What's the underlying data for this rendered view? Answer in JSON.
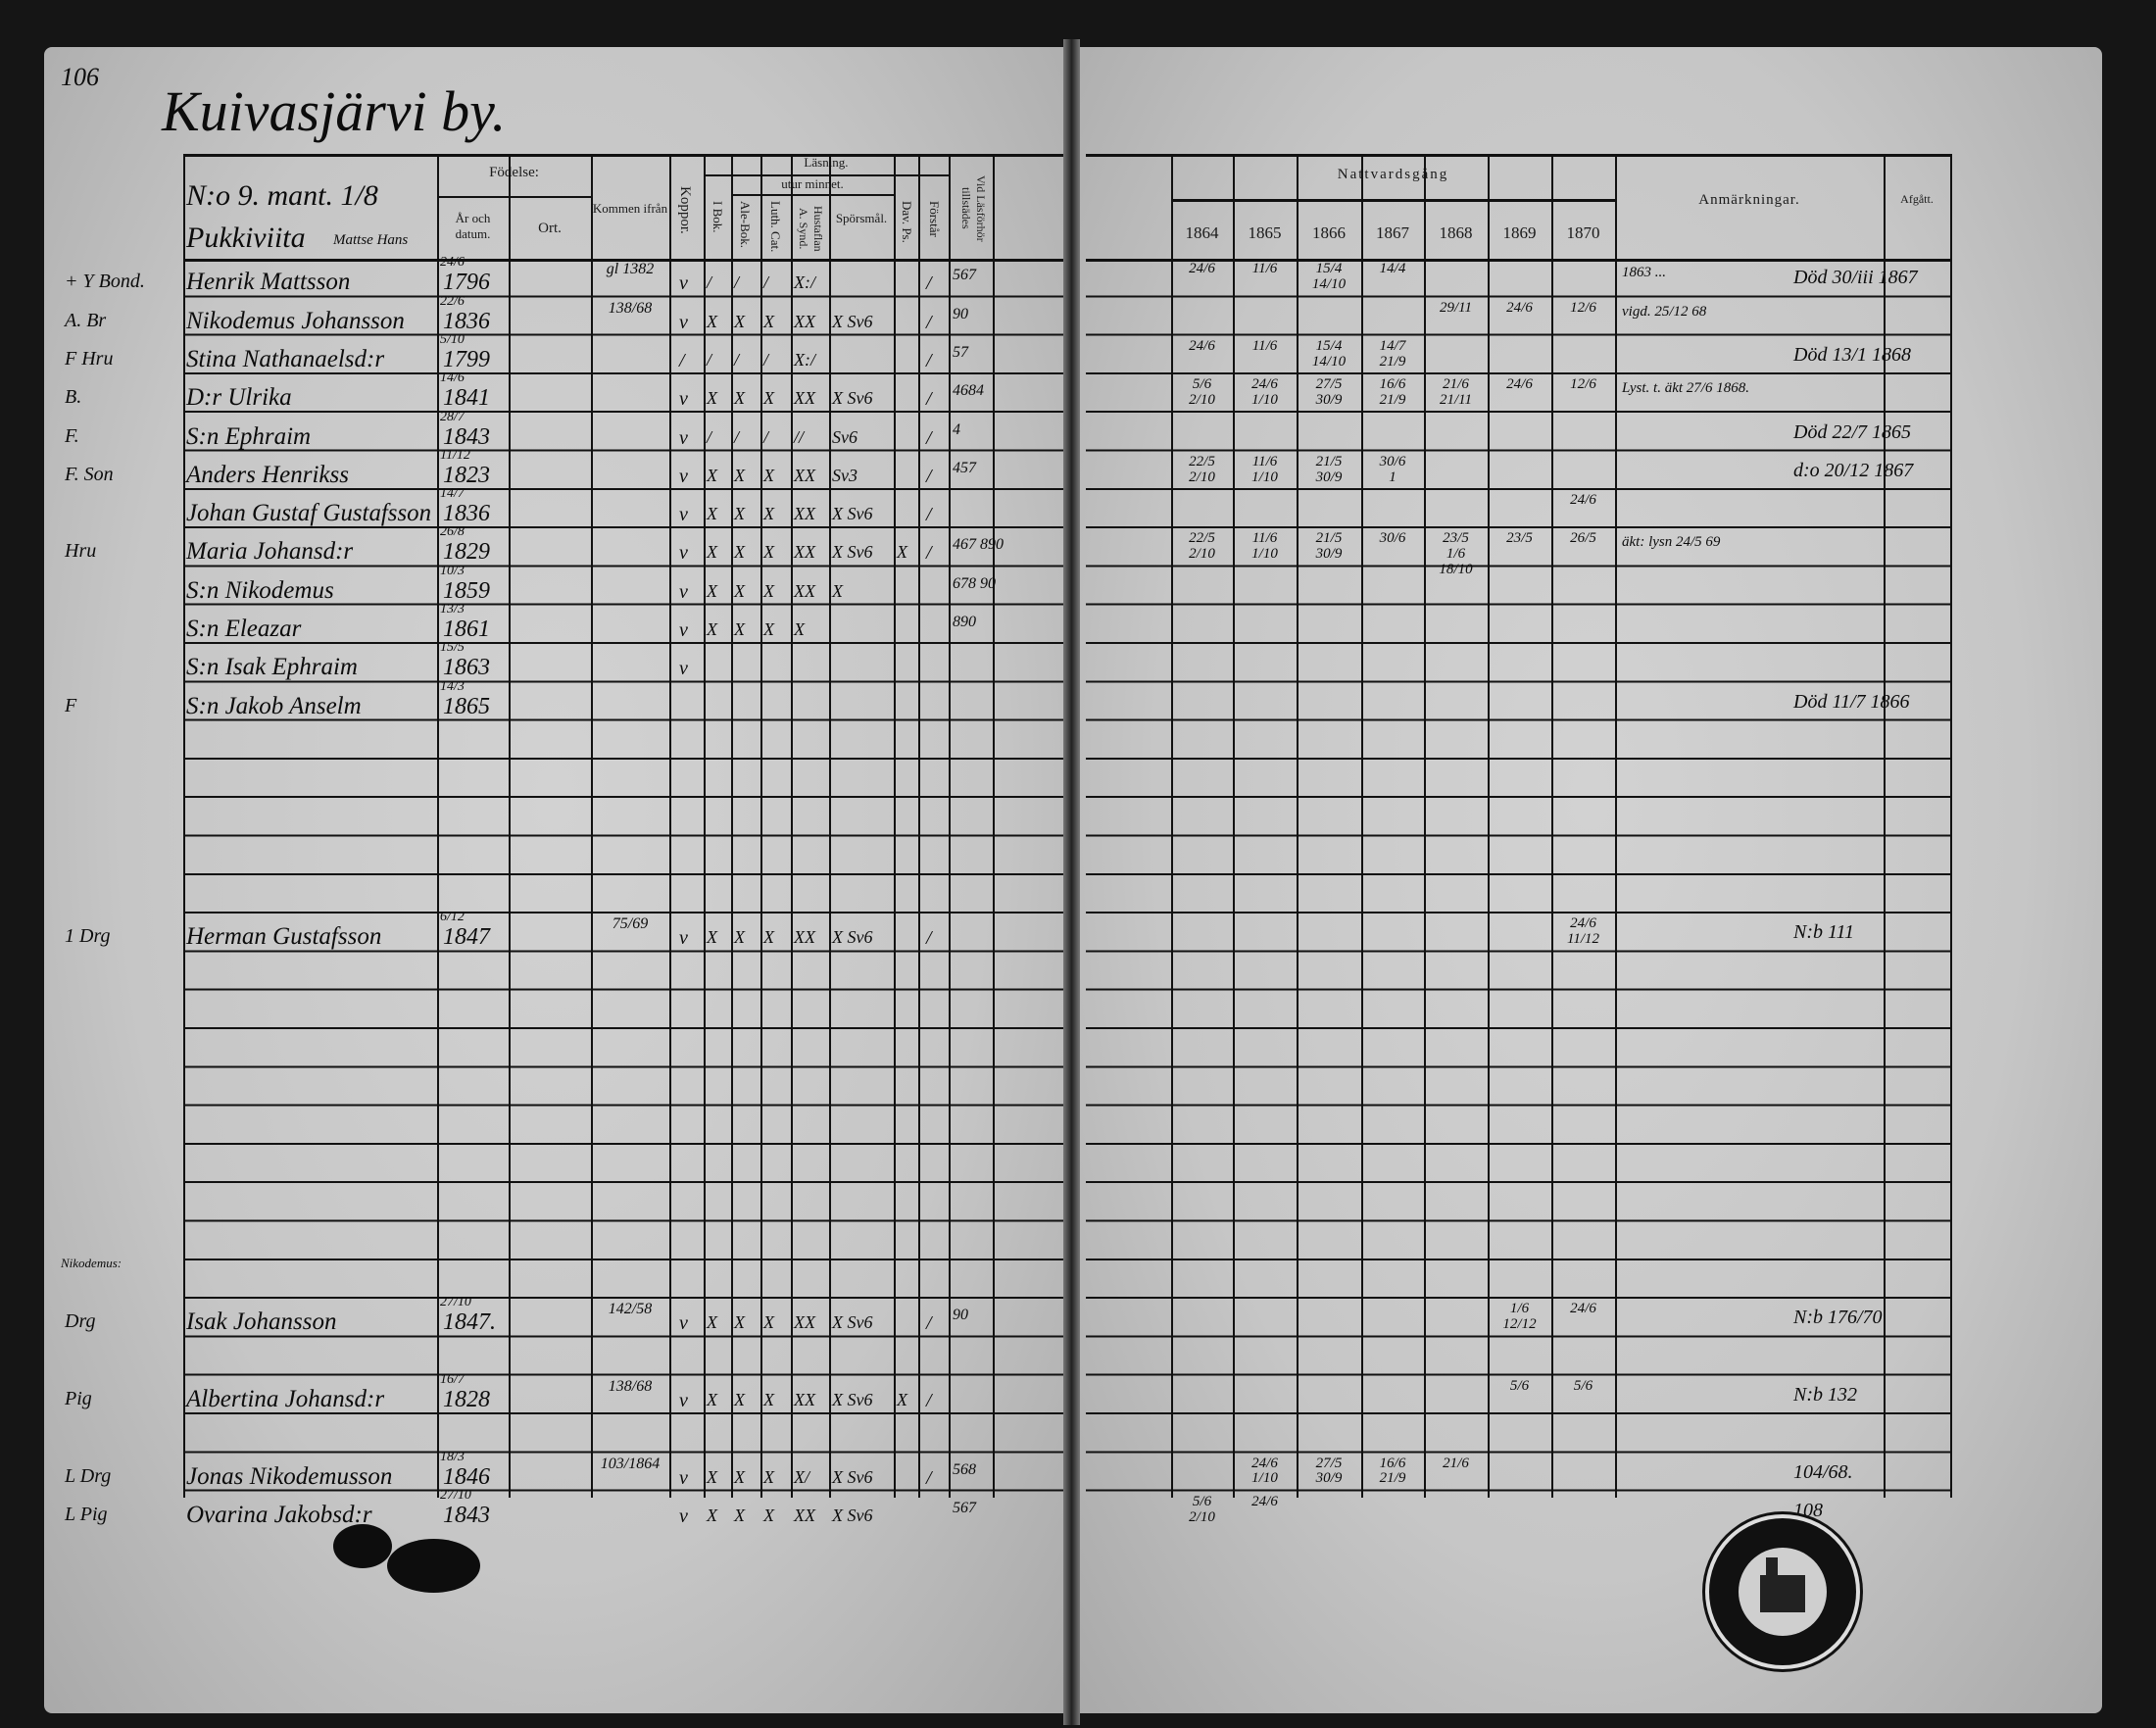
{
  "page_number": "106",
  "village_title": "Kuivasjärvi by.",
  "homestead": {
    "number": "N:o 9. mant. 1/8",
    "name": "Pukkiviita",
    "name_note": "Mattse Hans"
  },
  "left_headers": {
    "birth": "Födelse:",
    "year_date": "År och datum.",
    "place": "Ort.",
    "came_from": "Kommen ifrån",
    "smallpox": "Koppor.",
    "reading": "Läsning.",
    "by_heart": "utur minnet.",
    "in_book": "I Bok.",
    "abc_book": "Ale-Bok.",
    "luth_cat": "Luth. Cat.",
    "household": "Hustaflan A. Synd.",
    "questions": "Spörsmål.",
    "dav_ps": "Dav. Ps.",
    "understands": "Förstår",
    "exam_present": "Vid Läsförhör tillstädes"
  },
  "right_headers": {
    "communion": "Nattvardsgång",
    "years": [
      "1864",
      "1865",
      "1866",
      "1867",
      "1868",
      "1869",
      "1870"
    ],
    "remarks": "Anmärkningar.",
    "departed": "Afgått."
  },
  "margin_note": "Nikodemus:",
  "rows": [
    {
      "prefix": "+ Y Bond.",
      "name": "Henrik Mattsson",
      "birth_day": "24/6",
      "birth_year": "1796",
      "came_from": "gl 1382",
      "smallpox": "v",
      "marks": [
        "/",
        "/",
        "/",
        "X:/",
        "",
        ""
      ],
      "understands": "/",
      "exam": "567",
      "communion": [
        "24/6",
        "11/6",
        "15/4 14/10",
        "14/4",
        "",
        "",
        ""
      ],
      "remark": "1863 ...",
      "departed": "Död 30/iii 1867"
    },
    {
      "prefix": "A. Br",
      "name": "Nikodemus Johansson",
      "birth_day": "22/6",
      "birth_year": "1836",
      "came_from": "138/68",
      "smallpox": "v",
      "marks": [
        "X",
        "X",
        "X",
        "XX",
        "X Sv6",
        ""
      ],
      "understands": "/",
      "exam": "90",
      "communion": [
        "",
        "",
        "",
        "",
        "29/11",
        "24/6",
        "12/6"
      ],
      "remark": "vigd. 25/12 68",
      "departed": ""
    },
    {
      "prefix": "F Hru",
      "name": "Stina Nathanaelsd:r",
      "birth_day": "5/10",
      "birth_year": "1799",
      "came_from": "",
      "smallpox": "/",
      "marks": [
        "/",
        "/",
        "/",
        "X:/",
        "",
        ""
      ],
      "understands": "/",
      "exam": "57",
      "communion": [
        "24/6",
        "11/6",
        "15/4 14/10",
        "14/7 21/9",
        "",
        "",
        ""
      ],
      "remark": "",
      "departed": "Död 13/1 1868"
    },
    {
      "prefix": "B.",
      "name": "D:r Ulrika",
      "birth_day": "14/6",
      "birth_year": "1841",
      "came_from": "",
      "smallpox": "v",
      "marks": [
        "X",
        "X",
        "X",
        "XX",
        "X Sv6",
        ""
      ],
      "understands": "/",
      "exam": "4684",
      "communion": [
        "5/6 2/10",
        "24/6 1/10",
        "27/5 30/9",
        "16/6 21/9",
        "21/6 21/11",
        "24/6",
        "12/6"
      ],
      "remark": "Lyst. t. äkt 27/6 1868.",
      "departed": ""
    },
    {
      "prefix": "F.",
      "name": "S:n Ephraim",
      "birth_day": "28/7",
      "birth_year": "1843",
      "came_from": "",
      "smallpox": "v",
      "marks": [
        "/",
        "/",
        "/",
        "//",
        "Sv6",
        ""
      ],
      "understands": "/",
      "exam": "4",
      "communion": [
        "",
        "",
        "",
        "",
        "",
        "",
        ""
      ],
      "remark": "",
      "departed": "Död 22/7 1865"
    },
    {
      "prefix": "F. Son",
      "name": "Anders Henrikss",
      "birth_day": "11/12",
      "birth_year": "1823",
      "came_from": "",
      "smallpox": "v",
      "marks": [
        "X",
        "X",
        "X",
        "XX",
        "Sv3",
        ""
      ],
      "understands": "/",
      "exam": "457",
      "communion": [
        "22/5 2/10",
        "11/6 1/10",
        "21/5 30/9",
        "30/6 1",
        "",
        "",
        ""
      ],
      "remark": "",
      "departed": "d:o 20/12 1867"
    },
    {
      "prefix": "",
      "name": "Johan Gustaf Gustafsson",
      "birth_day": "14/7",
      "birth_year": "1836",
      "came_from": "",
      "smallpox": "v",
      "marks": [
        "X",
        "X",
        "X",
        "XX",
        "X Sv6",
        ""
      ],
      "understands": "/",
      "exam": "",
      "communion": [
        "",
        "",
        "",
        "",
        "",
        "",
        "24/6"
      ],
      "remark": "",
      "departed": ""
    },
    {
      "prefix": "Hru",
      "name": "Maria Johansd:r",
      "birth_day": "26/8",
      "birth_year": "1829",
      "came_from": "",
      "smallpox": "v",
      "marks": [
        "X",
        "X",
        "X",
        "XX",
        "X Sv6",
        "X"
      ],
      "understands": "/",
      "exam": "467 890",
      "communion": [
        "22/5 2/10",
        "11/6 1/10",
        "21/5 30/9",
        "30/6",
        "23/5 1/6 18/10",
        "23/5",
        "26/5"
      ],
      "remark": "äkt: lysn 24/5 69",
      "departed": ""
    },
    {
      "prefix": "",
      "name": "S:n Nikodemus",
      "birth_day": "10/3",
      "birth_year": "1859",
      "came_from": "",
      "smallpox": "v",
      "marks": [
        "X",
        "X",
        "X",
        "XX",
        "X",
        ""
      ],
      "understands": "",
      "exam": "678 90",
      "communion": [
        "",
        "",
        "",
        "",
        "",
        "",
        ""
      ],
      "remark": "",
      "departed": ""
    },
    {
      "prefix": "",
      "name": "S:n Eleazar",
      "birth_day": "13/3",
      "birth_year": "1861",
      "came_from": "",
      "smallpox": "v",
      "marks": [
        "X",
        "X",
        "X",
        "X",
        "",
        ""
      ],
      "understands": "",
      "exam": "890",
      "communion": [
        "",
        "",
        "",
        "",
        "",
        "",
        ""
      ],
      "remark": "",
      "departed": ""
    },
    {
      "prefix": "",
      "name": "S:n Isak Ephraim",
      "birth_day": "15/5",
      "birth_year": "1863",
      "came_from": "",
      "smallpox": "v",
      "marks": [
        "",
        "",
        "",
        "",
        "",
        ""
      ],
      "understands": "",
      "exam": "",
      "communion": [
        "",
        "",
        "",
        "",
        "",
        "",
        ""
      ],
      "remark": "",
      "departed": ""
    },
    {
      "prefix": "F",
      "name": "S:n Jakob Anselm",
      "birth_day": "14/3",
      "birth_year": "1865",
      "came_from": "",
      "smallpox": "",
      "marks": [
        "",
        "",
        "",
        "",
        "",
        ""
      ],
      "understands": "",
      "exam": "",
      "communion": [
        "",
        "",
        "",
        "",
        "",
        "",
        ""
      ],
      "remark": "",
      "departed": "Död 11/7 1866"
    },
    {
      "prefix": "1 Drg",
      "name": "Herman Gustafsson",
      "birth_day": "6/12",
      "birth_year": "1847",
      "came_from": "75/69",
      "smallpox": "v",
      "marks": [
        "X",
        "X",
        "X",
        "XX",
        "X Sv6",
        ""
      ],
      "understands": "/",
      "exam": "",
      "communion": [
        "",
        "",
        "",
        "",
        "",
        "",
        "24/6 11/12"
      ],
      "remark": "",
      "departed": "N:b 111"
    },
    {
      "prefix": "Drg",
      "name": "Isak Johansson",
      "birth_day": "27/10",
      "birth_year": "1847.",
      "came_from": "142/58",
      "smallpox": "v",
      "marks": [
        "X",
        "X",
        "X",
        "XX",
        "X Sv6",
        ""
      ],
      "understands": "/",
      "exam": "90",
      "communion": [
        "",
        "",
        "",
        "",
        "",
        "1/6 12/12",
        "24/6"
      ],
      "remark": "",
      "departed": "N:b 176/70"
    },
    {
      "prefix": "Pig",
      "name": "Albertina Johansd:r",
      "birth_day": "16/7",
      "birth_year": "1828",
      "came_from": "138/68",
      "smallpox": "v",
      "marks": [
        "X",
        "X",
        "X",
        "XX",
        "X Sv6",
        "X"
      ],
      "understands": "/",
      "exam": "",
      "communion": [
        "",
        "",
        "",
        "",
        "",
        "5/6",
        "5/6"
      ],
      "remark": "",
      "departed": "N:b 132"
    },
    {
      "prefix": "L Drg",
      "name": "Jonas Nikodemusson",
      "birth_day": "18/3",
      "birth_year": "1846",
      "came_from": "103/1864",
      "smallpox": "v",
      "marks": [
        "X",
        "X",
        "X",
        "X/",
        "X Sv6",
        ""
      ],
      "understands": "/",
      "exam": "568",
      "communion": [
        "",
        "24/6 1/10",
        "27/5 30/9",
        "16/6 21/9",
        "21/6",
        "",
        ""
      ],
      "remark": "",
      "departed": "104/68."
    },
    {
      "prefix": "L Pig",
      "name": "Ovarina Jakobsd:r",
      "birth_day": "27/10",
      "birth_year": "1843",
      "came_from": "",
      "smallpox": "v",
      "marks": [
        "X",
        "X",
        "X",
        "XX",
        "X Sv6",
        ""
      ],
      "understands": "",
      "exam": "567",
      "communion": [
        "5/6 2/10",
        "24/6",
        "",
        "",
        "",
        "",
        ""
      ],
      "remark": "",
      "departed": "108"
    }
  ]
}
